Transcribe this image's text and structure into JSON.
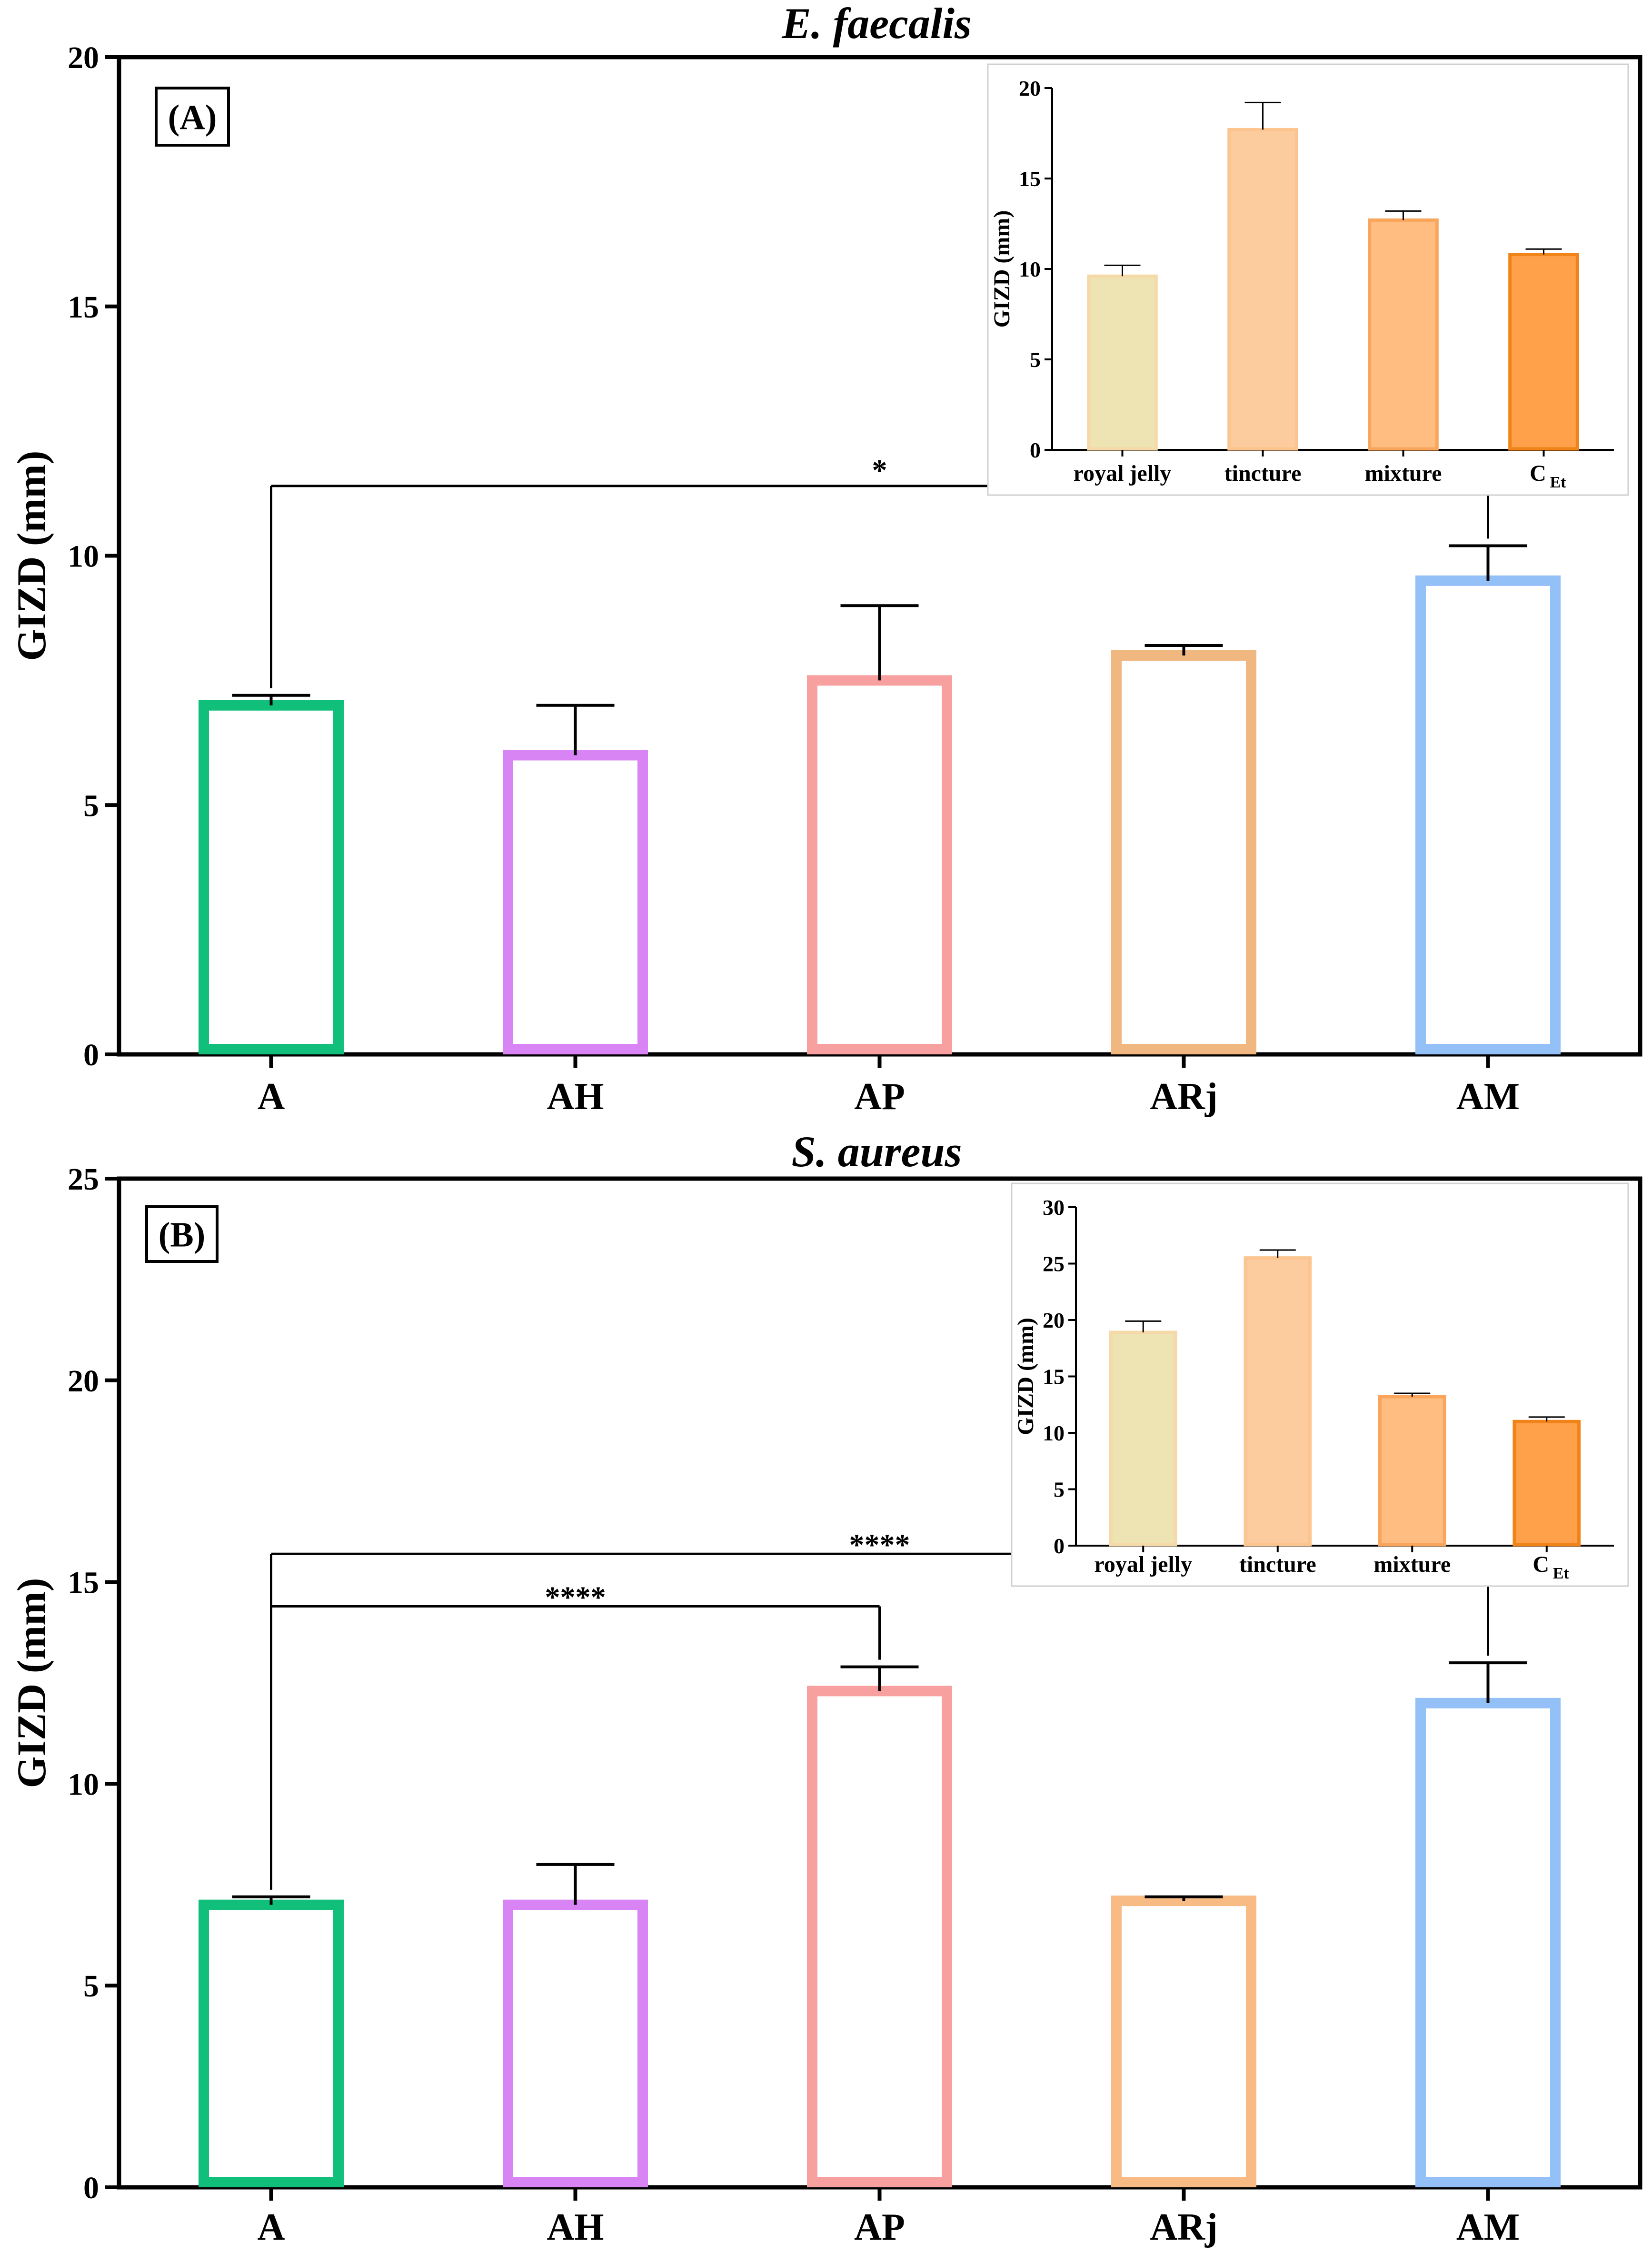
{
  "chart_data": [
    {
      "type": "bar",
      "panel_label": "(A)",
      "title": "E. faecalis",
      "ylabel": "GIZD (mm)",
      "ylim": [
        0,
        20
      ],
      "yticks": [
        0,
        5,
        10,
        15,
        20
      ],
      "categories": [
        "A",
        "AH",
        "AP",
        "ARj",
        "AM"
      ],
      "values": [
        7,
        6,
        7.5,
        8,
        9.5
      ],
      "errors": [
        0.2,
        1.0,
        1.5,
        0.2,
        0.7
      ],
      "colors": [
        "#10bf7a",
        "#d884f5",
        "#f8a0a0",
        "#f0b780",
        "#94c0f8"
      ],
      "significance": [
        {
          "from": "A",
          "to": "AM",
          "label": "*"
        }
      ],
      "inset": {
        "type": "bar",
        "ylabel": "GIZD (mm)",
        "ylim": [
          0,
          20
        ],
        "yticks": [
          0,
          5,
          10,
          15,
          20
        ],
        "categories": [
          "royal jelly",
          "tincture",
          "mixture",
          "C"
        ],
        "category_subscripts": [
          "",
          "",
          "",
          "Et"
        ],
        "values": [
          9.6,
          17.7,
          12.7,
          10.8
        ],
        "errors": [
          0.6,
          1.5,
          0.5,
          0.3
        ],
        "fills": [
          "#ede3b3",
          "#fccb9e",
          "#ffbd82",
          "#ffa14a"
        ],
        "strokes": [
          "#f5d9a8",
          "#fcc590",
          "#f9a65c",
          "#f08418"
        ]
      }
    },
    {
      "type": "bar",
      "panel_label": "(B)",
      "title": "S. aureus",
      "ylabel": "GIZD (mm)",
      "ylim": [
        0,
        25
      ],
      "yticks": [
        0,
        5,
        10,
        15,
        20,
        25
      ],
      "categories": [
        "A",
        "AH",
        "AP",
        "ARj",
        "AM"
      ],
      "values": [
        7,
        7,
        12.3,
        7.1,
        12
      ],
      "errors": [
        0.2,
        1.0,
        0.6,
        0.1,
        1.0
      ],
      "colors": [
        "#10bf7a",
        "#d884f5",
        "#f8a0a0",
        "#f8bb84",
        "#94c0f8"
      ],
      "significance": [
        {
          "from": "A",
          "to": "AP",
          "label": "****"
        },
        {
          "from": "A",
          "to": "AM",
          "label": "****"
        }
      ],
      "inset": {
        "type": "bar",
        "ylabel": "GIZD (mm)",
        "ylim": [
          0,
          30
        ],
        "yticks": [
          0,
          5,
          10,
          15,
          20,
          25,
          30
        ],
        "categories": [
          "royal jelly",
          "tincture",
          "mixture",
          "C"
        ],
        "category_subscripts": [
          "",
          "",
          "",
          "Et"
        ],
        "values": [
          18.9,
          25.5,
          13.2,
          11
        ],
        "errors": [
          1.0,
          0.7,
          0.3,
          0.4
        ],
        "fills": [
          "#ede3b3",
          "#fccb9e",
          "#ffbd82",
          "#ffa14a"
        ],
        "strokes": [
          "#f5d9a8",
          "#fcc590",
          "#f9a65c",
          "#f08418"
        ]
      }
    }
  ]
}
